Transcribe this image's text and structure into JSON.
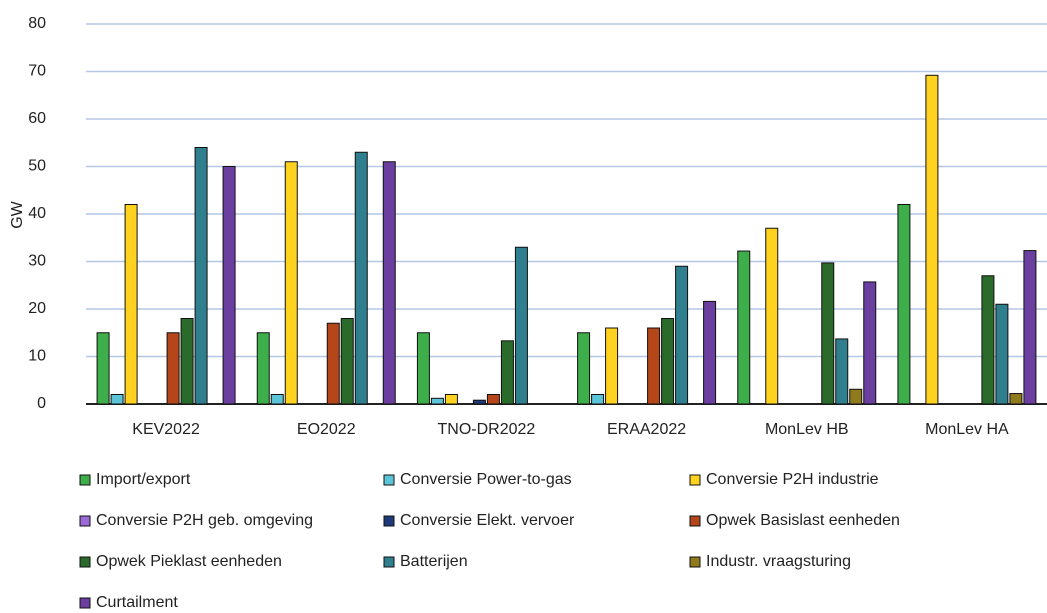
{
  "chart_data": {
    "type": "bar",
    "y_label": "GW",
    "categories": [
      "KEV2022",
      "EO2022",
      "TNO-DR2022",
      "ERAA2022",
      "MonLev HB",
      "MonLev HA"
    ],
    "ylim": [
      0,
      80
    ],
    "yticks": [
      0,
      10,
      20,
      30,
      40,
      50,
      60,
      70,
      80
    ],
    "grid": true,
    "series": [
      {
        "name": "Import/export",
        "color": "#3dae49",
        "values": [
          15,
          15,
          15,
          15,
          32.2,
          42
        ]
      },
      {
        "name": "Conversie Power-to-gas",
        "color": "#5bc4d6",
        "values": [
          2,
          2,
          1.2,
          2,
          0,
          0
        ]
      },
      {
        "name": "Conversie P2H industrie",
        "color": "#ffd21f",
        "values": [
          42,
          51,
          2,
          16,
          37,
          69.2
        ]
      },
      {
        "name": "Conversie P2H geb. omgeving",
        "color": "#9b6ad8",
        "values": [
          0,
          0,
          0,
          0,
          0,
          0
        ]
      },
      {
        "name": "Conversie Elekt. vervoer",
        "color": "#1f3a7a",
        "values": [
          0,
          0,
          0.8,
          0,
          0,
          0
        ]
      },
      {
        "name": "Opwek Basislast eenheden",
        "color": "#b5461a",
        "values": [
          15,
          17,
          2,
          16,
          0,
          0
        ]
      },
      {
        "name": "Opwek Pieklast eenheden",
        "color": "#2a6a2a",
        "values": [
          18,
          18,
          13.3,
          18,
          29.7,
          27
        ]
      },
      {
        "name": "Batterijen",
        "color": "#2f7f8f",
        "values": [
          54,
          53,
          33,
          29,
          13.7,
          21
        ]
      },
      {
        "name": "Industr. vraagsturing",
        "color": "#8f7a1e",
        "values": [
          0,
          0,
          0,
          0,
          3.1,
          2.2
        ]
      },
      {
        "name": "Curtailment",
        "color": "#6a3fa0",
        "values": [
          50,
          51,
          0,
          21.6,
          25.7,
          32.3
        ]
      }
    ]
  }
}
